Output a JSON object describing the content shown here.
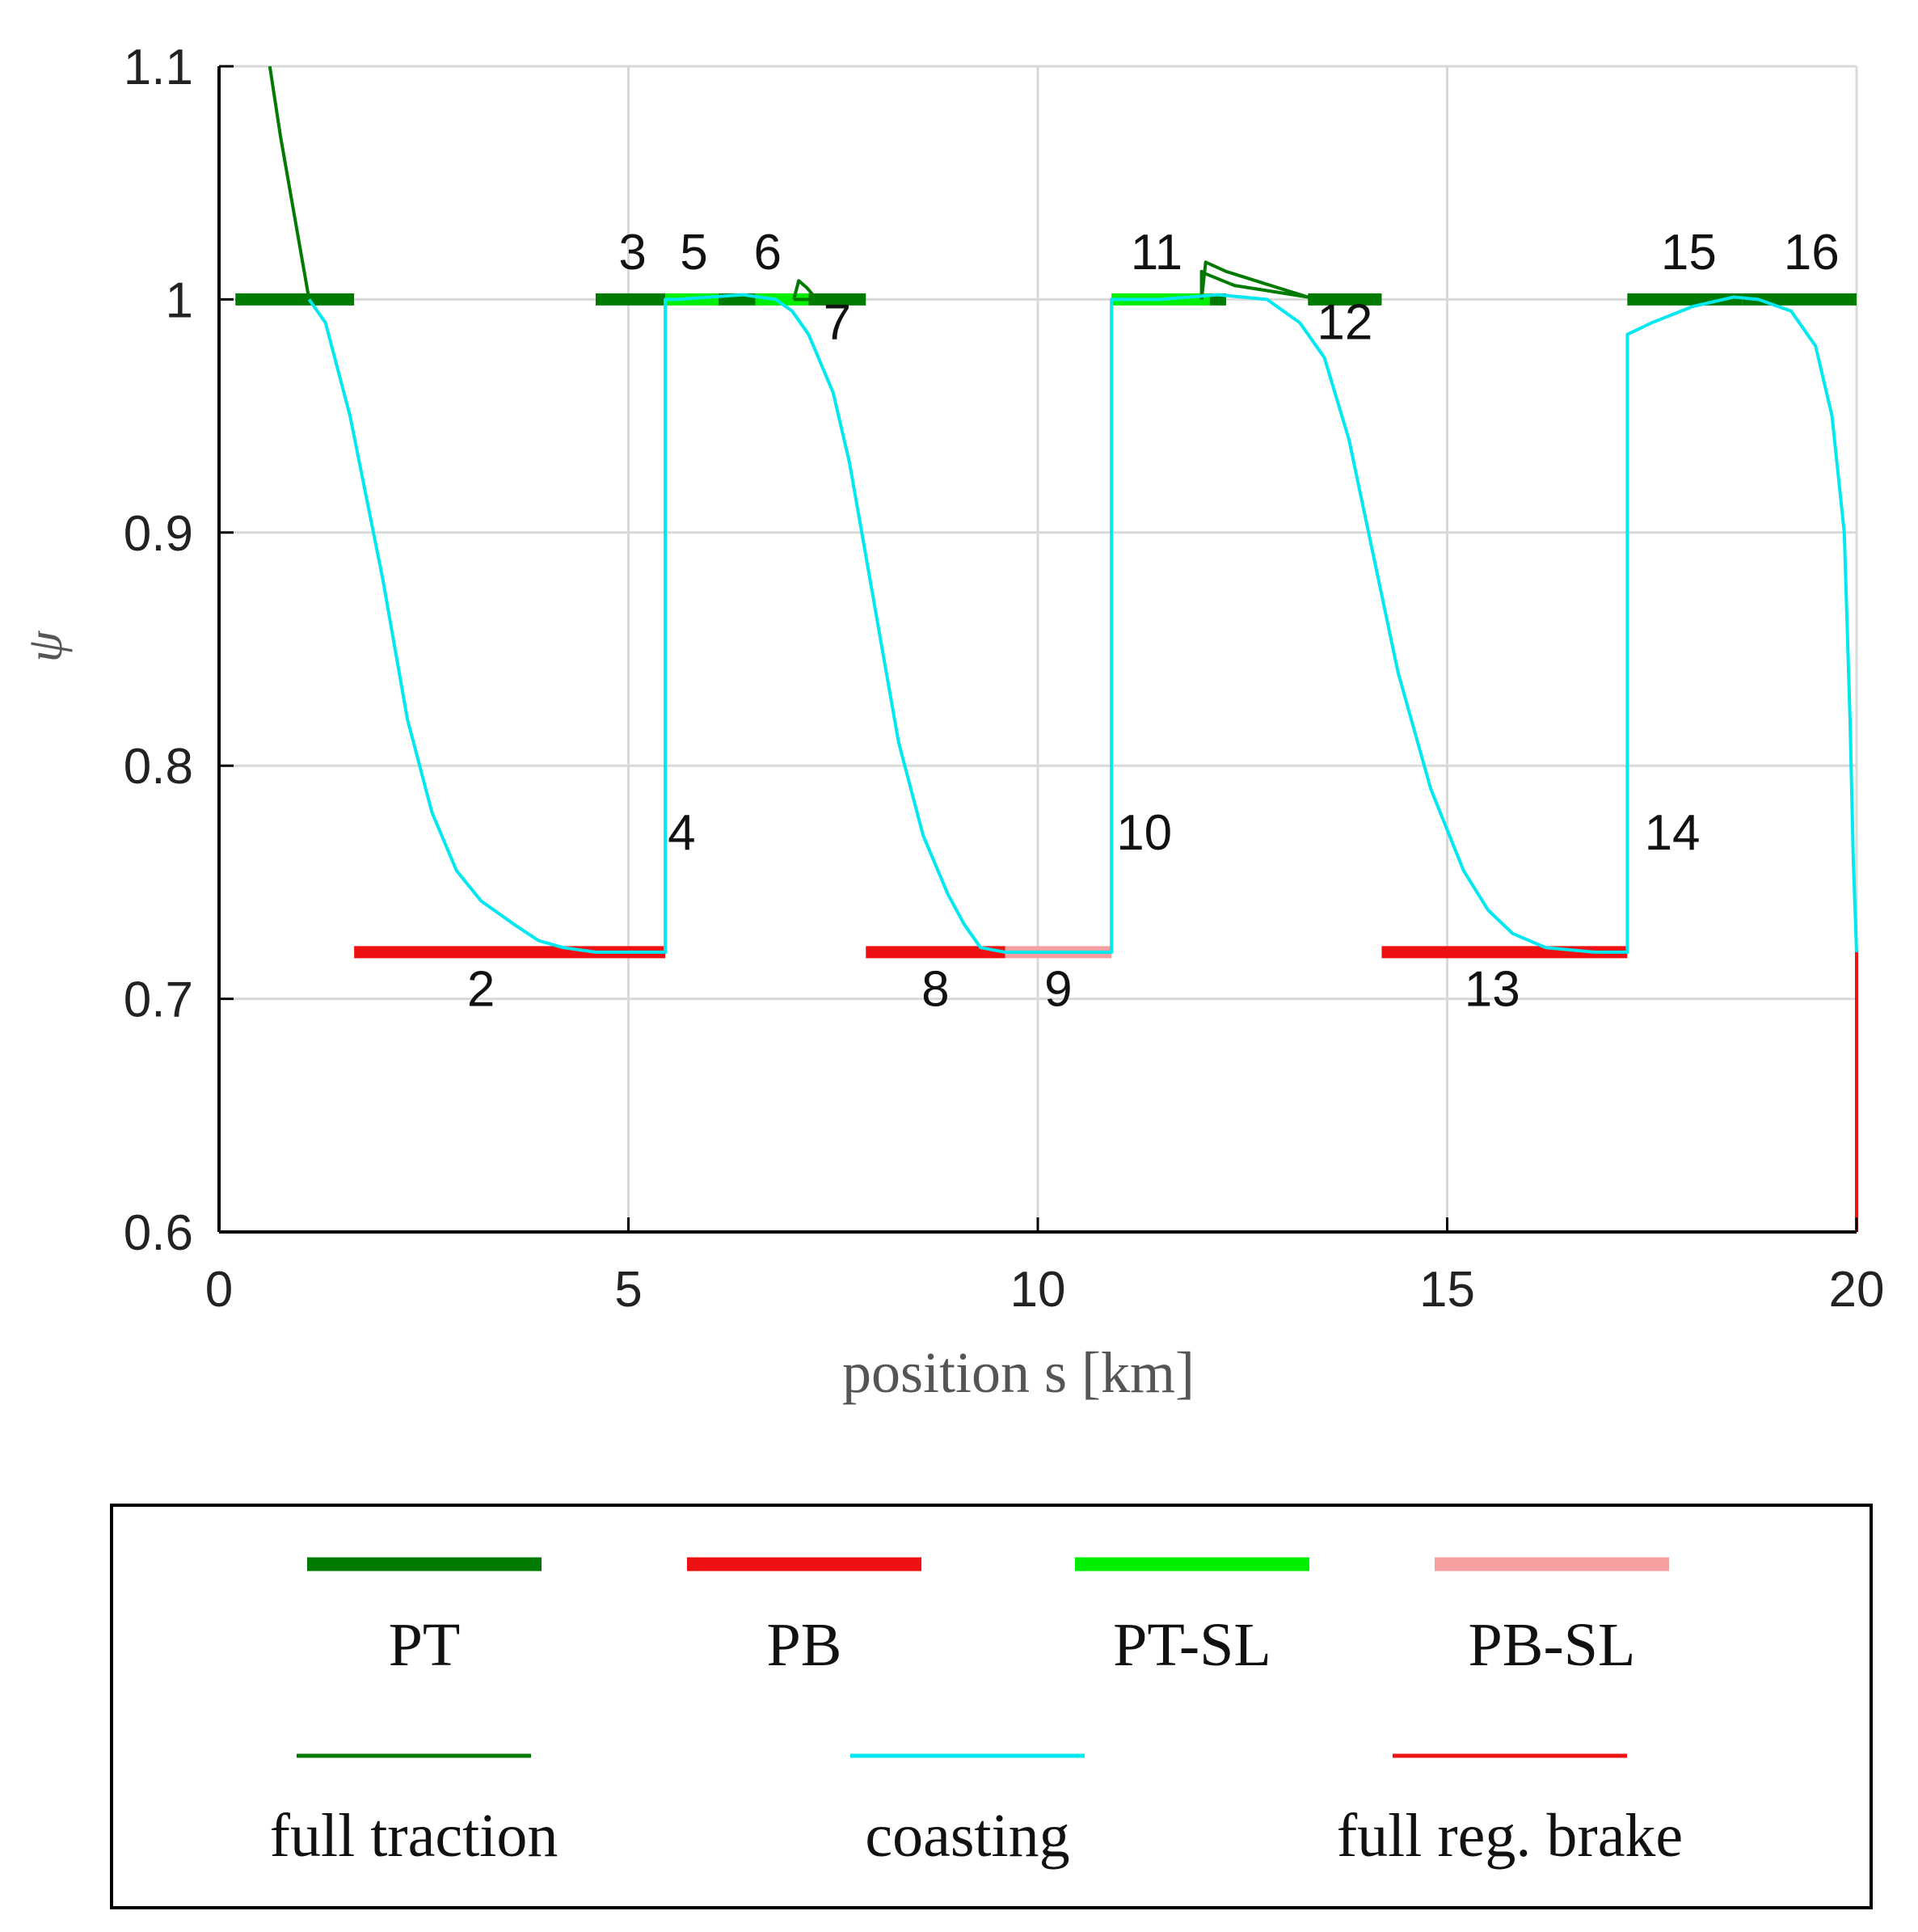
{
  "chart_data": {
    "type": "line",
    "title": "",
    "xlabel": "position s [km]",
    "ylabel": "ψ",
    "xlim": [
      0,
      20
    ],
    "ylim": [
      0.6,
      1.1
    ],
    "xticks": [
      0,
      5,
      10,
      15,
      20
    ],
    "yticks": [
      0.6,
      0.7,
      0.8,
      0.9,
      1.0,
      1.1
    ],
    "xtick_labels": [
      "0",
      "5",
      "10",
      "15",
      "20"
    ],
    "ytick_labels": [
      "0.6",
      "0.7",
      "0.8",
      "0.9",
      "1",
      "1.1"
    ],
    "grid": true,
    "legend_placement": "below",
    "colors": {
      "PT": "#007a00",
      "PB": "#ee1111",
      "PT-SL": "#00ee00",
      "PB-SL": "#f4a0a0",
      "full traction": "#007a00",
      "coasting": "#00e8f0",
      "full reg. brake": "#ee1111"
    },
    "segments": [
      {
        "id": "1",
        "type": "PT",
        "x": [
          0.2,
          1.65
        ],
        "y": 1.0
      },
      {
        "id": "2",
        "type": "PB",
        "x": [
          1.65,
          4.6
        ],
        "y": 0.72
      },
      {
        "id": "3",
        "type": "PT",
        "x": [
          4.6,
          5.45
        ],
        "y": 1.0
      },
      {
        "id": "4",
        "type": "PB",
        "x": [
          4.6,
          5.45
        ],
        "y": 0.72
      },
      {
        "id": "5",
        "type": "PT-SL",
        "x": [
          5.45,
          6.1
        ],
        "y": 1.0
      },
      {
        "id": "6",
        "type": "PT",
        "x": [
          6.1,
          6.55
        ],
        "y": 1.0
      },
      {
        "id": "7",
        "type": "PT-SL",
        "x": [
          6.55,
          7.2
        ],
        "y": 1.0
      },
      {
        "id": "7b",
        "type": "PT",
        "x": [
          7.2,
          7.9
        ],
        "y": 1.0
      },
      {
        "id": "8",
        "type": "PB",
        "x": [
          7.9,
          9.6
        ],
        "y": 0.72
      },
      {
        "id": "9",
        "type": "PB-SL",
        "x": [
          9.6,
          10.9
        ],
        "y": 0.72
      },
      {
        "id": "11",
        "type": "PT-SL",
        "x": [
          10.9,
          12.1
        ],
        "y": 1.0
      },
      {
        "id": "11b",
        "type": "PT",
        "x": [
          12.1,
          12.3
        ],
        "y": 1.0
      },
      {
        "id": "12",
        "type": "PT",
        "x": [
          13.3,
          14.2
        ],
        "y": 1.0
      },
      {
        "id": "13",
        "type": "PB",
        "x": [
          14.2,
          17.2
        ],
        "y": 0.72
      },
      {
        "id": "15",
        "type": "PT",
        "x": [
          17.2,
          18.6
        ],
        "y": 1.0
      },
      {
        "id": "16",
        "type": "PT",
        "x": [
          18.6,
          20.0
        ],
        "y": 1.0
      }
    ],
    "series": [
      {
        "name": "full traction",
        "lines": [
          {
            "x": [
              0.62,
              0.75,
              0.9,
              1.0,
              1.05,
              1.1
            ],
            "y": [
              1.1,
              1.07,
              1.04,
              1.02,
              1.01,
              1.0
            ]
          },
          {
            "x": [
              7.02,
              7.08,
              7.18,
              7.3,
              7.02
            ],
            "y": [
              1.0,
              1.008,
              1.005,
              1.0,
              1.0
            ]
          },
          {
            "x": [
              12.0,
              12.05,
              12.3,
              12.75,
              13.3,
              12.4,
              12.05,
              12.0,
              12.0
            ],
            "y": [
              1.0,
              1.016,
              1.012,
              1.007,
              1.001,
              1.006,
              1.011,
              1.012,
              1.0
            ]
          }
        ]
      },
      {
        "name": "coasting",
        "lines": [
          {
            "x": [
              1.1,
              1.3,
              1.6,
              2.0,
              2.3,
              2.6,
              2.9,
              3.2,
              3.6,
              3.9,
              4.2,
              4.6,
              5.2,
              5.45,
              5.45,
              5.6,
              6.0,
              6.4,
              6.8,
              7.0,
              7.2,
              7.5,
              7.7,
              7.9,
              8.1,
              8.3,
              8.6,
              8.9,
              9.1,
              9.3,
              9.6,
              10.9,
              10.9,
              11.5,
              12.2,
              12.8,
              13.2,
              13.5,
              13.8,
              14.1,
              14.4,
              14.8,
              15.2,
              15.5,
              15.8,
              16.2,
              16.8,
              17.2,
              17.2,
              17.5,
              18.0,
              18.5,
              18.8,
              19.2,
              19.5,
              19.7,
              19.85,
              19.92,
              19.96,
              20.0
            ],
            "y": [
              1.0,
              0.99,
              0.95,
              0.88,
              0.82,
              0.78,
              0.755,
              0.742,
              0.732,
              0.725,
              0.722,
              0.72,
              0.72,
              0.72,
              1.0,
              1.0,
              1.001,
              1.002,
              1.0,
              0.995,
              0.985,
              0.96,
              0.93,
              0.89,
              0.85,
              0.81,
              0.77,
              0.745,
              0.732,
              0.722,
              0.72,
              0.72,
              1.0,
              1.0,
              1.002,
              1.0,
              0.99,
              0.975,
              0.94,
              0.89,
              0.84,
              0.79,
              0.755,
              0.738,
              0.728,
              0.722,
              0.72,
              0.72,
              0.985,
              0.99,
              0.997,
              1.001,
              1.0,
              0.995,
              0.98,
              0.95,
              0.9,
              0.82,
              0.76,
              0.72
            ]
          }
        ]
      },
      {
        "name": "full reg. brake",
        "lines": [
          {
            "x": [
              20.0,
              20.0
            ],
            "y": [
              0.72,
              0.6
            ]
          }
        ]
      }
    ],
    "annotations": [
      {
        "text": "2",
        "x": 3.2,
        "y": 0.697
      },
      {
        "text": "3",
        "x": 5.05,
        "y": 1.013
      },
      {
        "text": "4",
        "x": 5.65,
        "y": 0.764
      },
      {
        "text": "5",
        "x": 5.8,
        "y": 1.013
      },
      {
        "text": "6",
        "x": 6.7,
        "y": 1.013
      },
      {
        "text": "7",
        "x": 7.55,
        "y": 0.983
      },
      {
        "text": "8",
        "x": 8.75,
        "y": 0.697
      },
      {
        "text": "9",
        "x": 10.25,
        "y": 0.697
      },
      {
        "text": "10",
        "x": 11.3,
        "y": 0.764
      },
      {
        "text": "11",
        "x": 11.45,
        "y": 1.013
      },
      {
        "text": "12",
        "x": 13.75,
        "y": 0.983
      },
      {
        "text": "13",
        "x": 15.55,
        "y": 0.697
      },
      {
        "text": "14",
        "x": 17.75,
        "y": 0.764
      },
      {
        "text": "15",
        "x": 17.95,
        "y": 1.013
      },
      {
        "text": "16",
        "x": 19.45,
        "y": 1.013
      }
    ],
    "legend": {
      "entries": [
        {
          "label": "PT",
          "style": "thick",
          "color": "#007a00"
        },
        {
          "label": "PB",
          "style": "thick",
          "color": "#ee1111"
        },
        {
          "label": "PT-SL",
          "style": "thick",
          "color": "#00ee00"
        },
        {
          "label": "PB-SL",
          "style": "thick",
          "color": "#f4a0a0"
        },
        {
          "label": "full traction",
          "style": "thin",
          "color": "#007a00"
        },
        {
          "label": "coasting",
          "style": "thin",
          "color": "#00e8f0"
        },
        {
          "label": "full reg. brake",
          "style": "thin",
          "color": "#ee1111"
        }
      ]
    }
  }
}
